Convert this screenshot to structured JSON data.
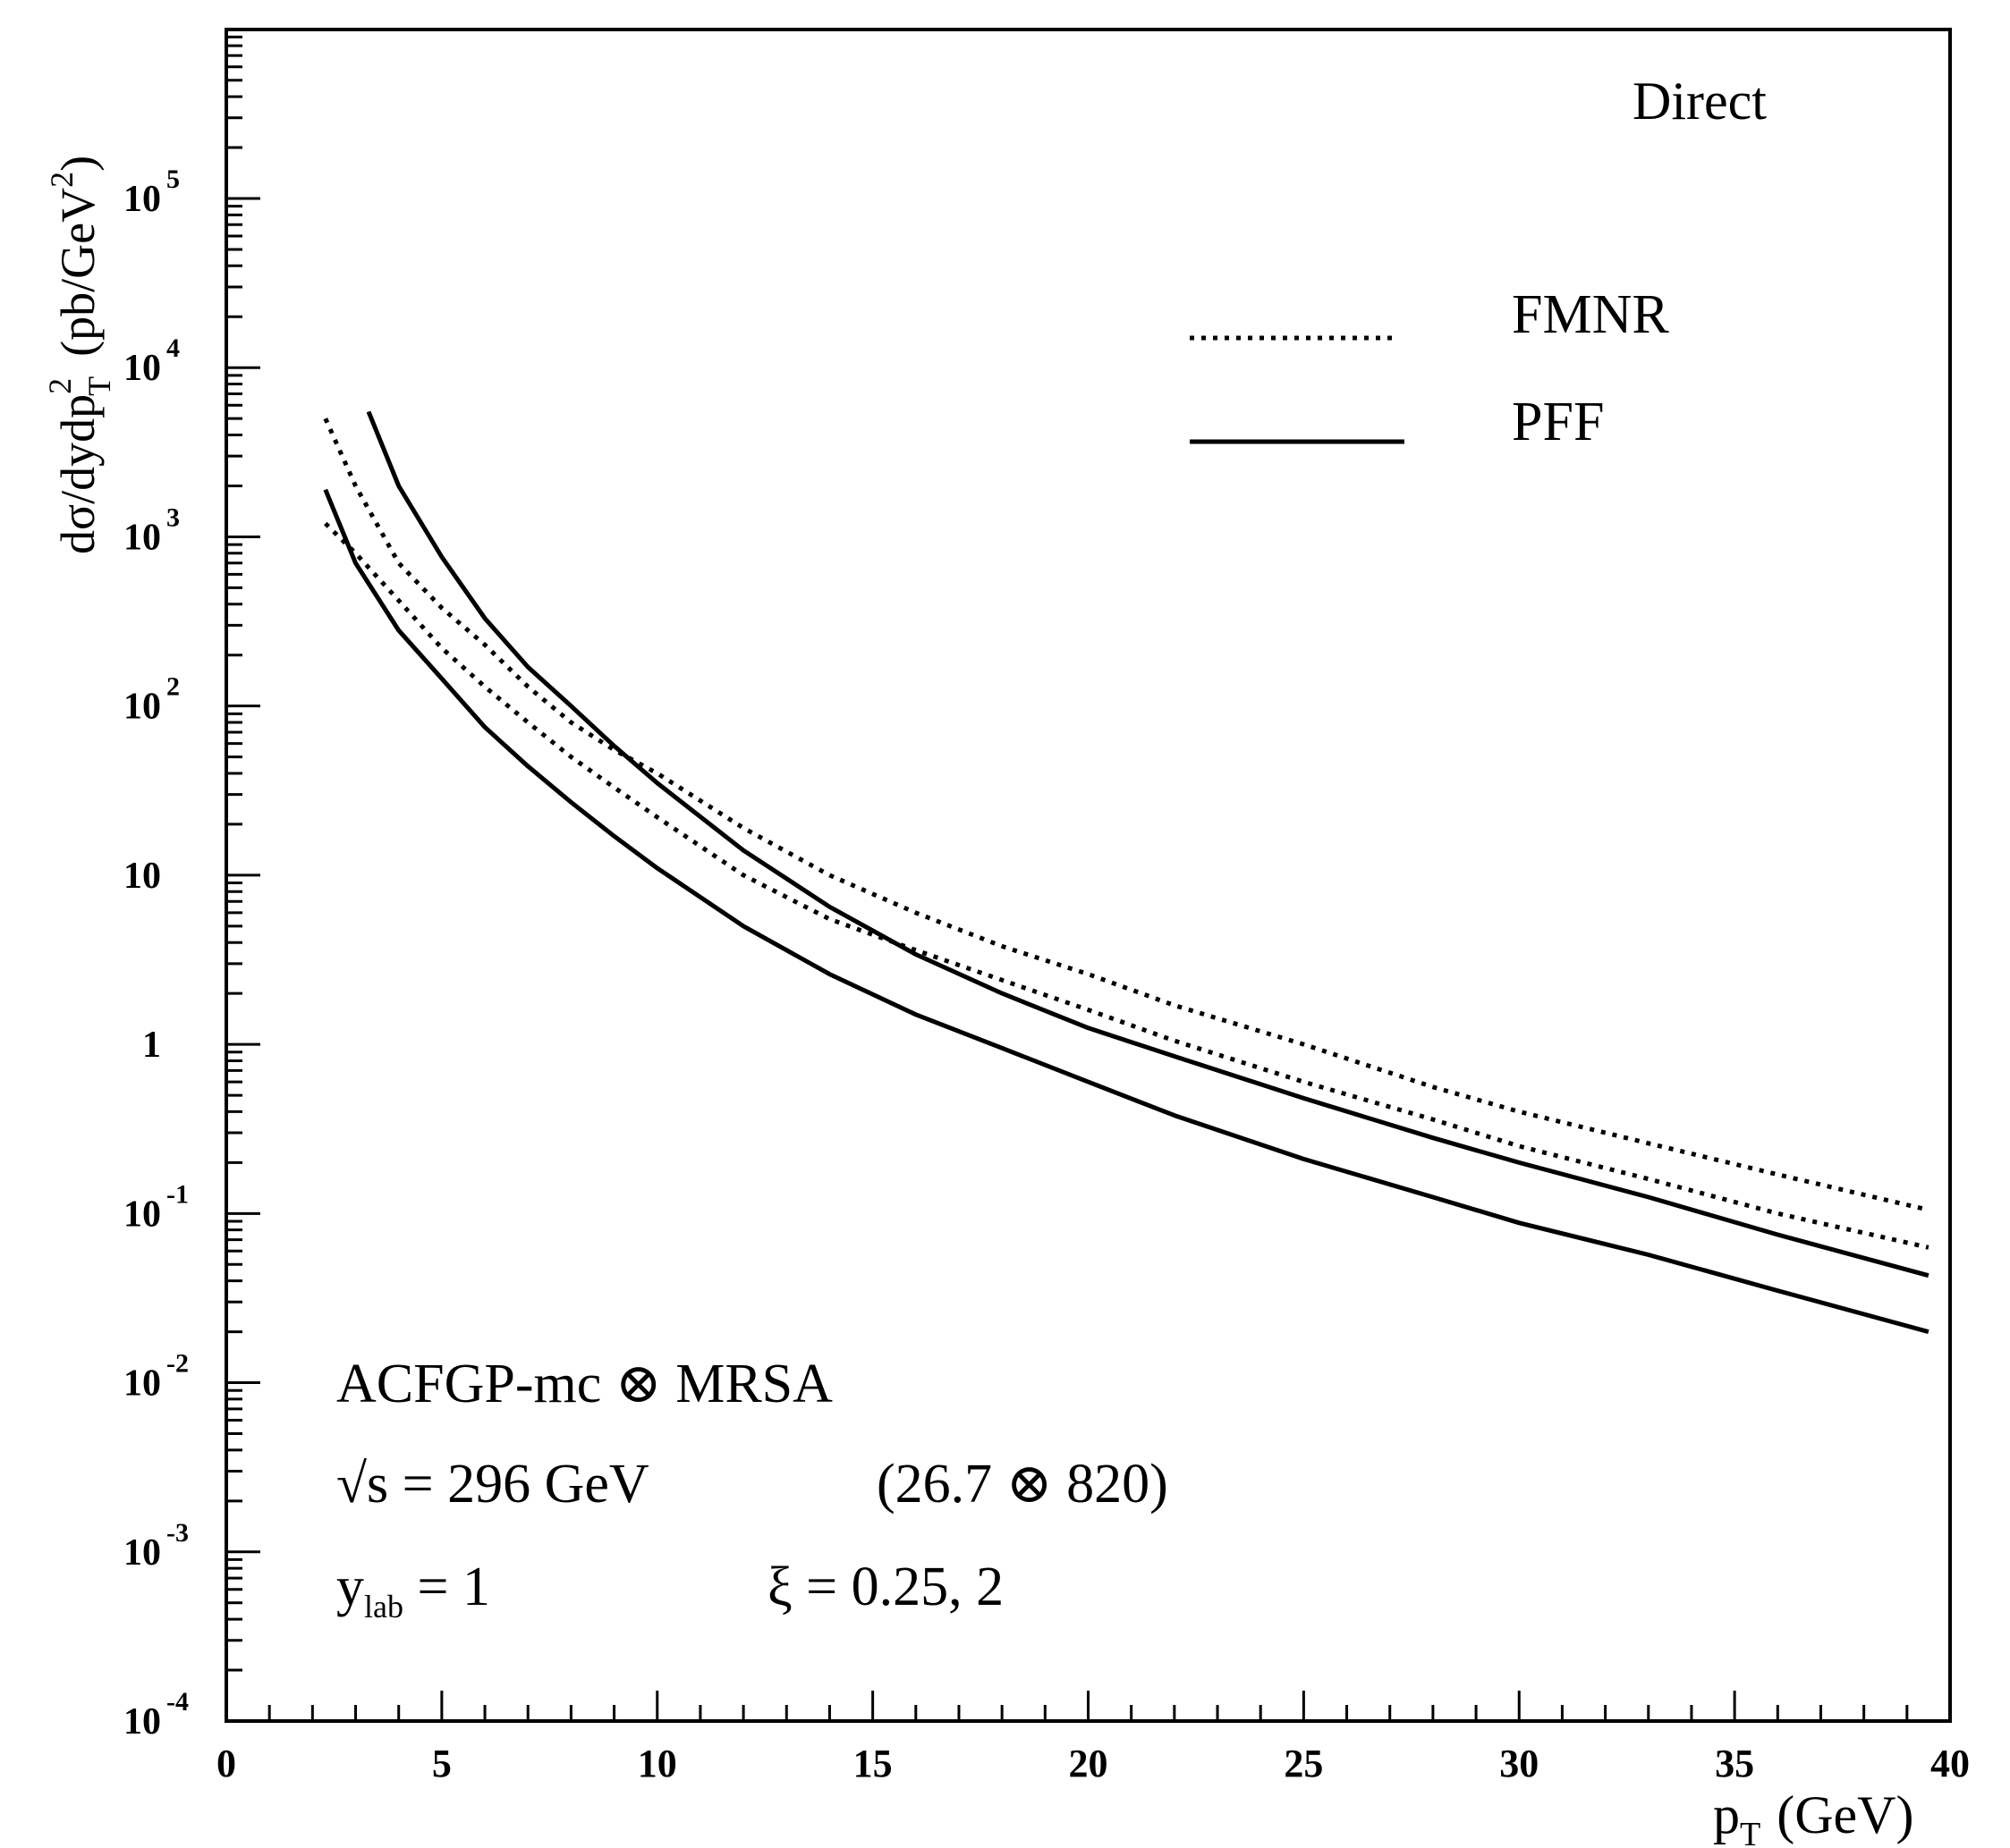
{
  "chart_data": {
    "type": "line",
    "title": "Direct",
    "xlabel": "p",
    "xlabel_sub": "T",
    "xlabel_unit": "(GeV)",
    "ylabel": "dσ/dydp",
    "ylabel_sup": "2",
    "ylabel_sub": "T",
    "ylabel_unit": "(pb/GeV",
    "ylabel_unit_sup": "2",
    "ylabel_unit_close": ")",
    "xlim": [
      0,
      40
    ],
    "ylim": [
      0.0001,
      1000000
    ],
    "yscale": "log",
    "grid": false,
    "legend_position": "top-right",
    "x_tick_labels": [
      "0",
      "5",
      "10",
      "15",
      "20",
      "25",
      "30",
      "35",
      "40"
    ],
    "y_ticks": [
      {
        "value": 100000,
        "base": "10",
        "exp": "5"
      },
      {
        "value": 10000,
        "base": "10",
        "exp": "4"
      },
      {
        "value": 1000,
        "base": "10",
        "exp": "3"
      },
      {
        "value": 100,
        "base": "10",
        "exp": "2"
      },
      {
        "value": 10,
        "base": "10",
        "exp": ""
      },
      {
        "value": 1,
        "base": "1",
        "exp": ""
      },
      {
        "value": 0.1,
        "base": "10",
        "exp": "-1"
      },
      {
        "value": 0.01,
        "base": "10",
        "exp": "-2"
      },
      {
        "value": 0.001,
        "base": "10",
        "exp": "-3"
      },
      {
        "value": 0.0001,
        "base": "10",
        "exp": "-4"
      }
    ],
    "legend": [
      {
        "label": "FMNR",
        "style": "dotted"
      },
      {
        "label": "PFF",
        "style": "solid"
      }
    ],
    "annotations": {
      "line1": "ACFGP-mc ⊗ MRSA",
      "line2_sqrt": "√",
      "line2": "s = 296  GeV",
      "line2_right": "(26.7 ⊗ 820)",
      "line3_y": "y",
      "line3_sub": "lab",
      "line3": " = 1",
      "line3_right": "ξ = 0.25, 2"
    },
    "series": [
      {
        "style": "solid",
        "x": [
          3.3,
          4,
          5,
          6,
          7,
          8,
          9,
          10,
          12,
          14,
          16,
          18,
          20,
          22,
          25,
          28,
          30,
          33,
          36,
          39.5
        ],
        "y": [
          5500,
          2000,
          760,
          330,
          170,
          100,
          58,
          35,
          14,
          6.5,
          3.4,
          2.0,
          1.25,
          0.85,
          0.48,
          0.28,
          0.2,
          0.125,
          0.075,
          0.043
        ]
      },
      {
        "style": "dotted",
        "x": [
          2.3,
          3,
          4,
          5,
          6,
          7,
          8,
          9,
          10,
          12,
          14,
          16,
          18,
          20,
          22,
          25,
          28,
          30,
          33,
          36,
          39.5
        ],
        "y": [
          5000,
          2000,
          700,
          380,
          230,
          130,
          80,
          55,
          40,
          19,
          10,
          6.0,
          3.8,
          2.6,
          1.7,
          1.0,
          0.56,
          0.4,
          0.26,
          0.17,
          0.105
        ]
      },
      {
        "style": "dotted",
        "x": [
          2.3,
          3,
          4,
          5,
          6,
          7,
          8,
          9,
          10,
          12,
          14,
          16,
          18,
          20,
          22,
          25,
          28,
          30,
          33,
          36,
          39.5
        ],
        "y": [
          1200,
          800,
          420,
          220,
          130,
          80,
          50,
          33,
          22,
          10,
          5.5,
          3.6,
          2.4,
          1.6,
          1.05,
          0.6,
          0.36,
          0.25,
          0.16,
          0.1,
          0.063
        ]
      },
      {
        "style": "solid",
        "x": [
          2.3,
          3,
          4,
          5,
          6,
          7,
          8,
          9,
          10,
          12,
          14,
          16,
          18,
          20,
          22,
          25,
          28,
          30,
          33,
          36,
          39.5
        ],
        "y": [
          1900,
          700,
          280,
          145,
          75,
          44,
          27,
          17,
          11,
          5.0,
          2.6,
          1.5,
          0.95,
          0.6,
          0.38,
          0.21,
          0.125,
          0.088,
          0.057,
          0.035,
          0.02
        ]
      }
    ]
  }
}
